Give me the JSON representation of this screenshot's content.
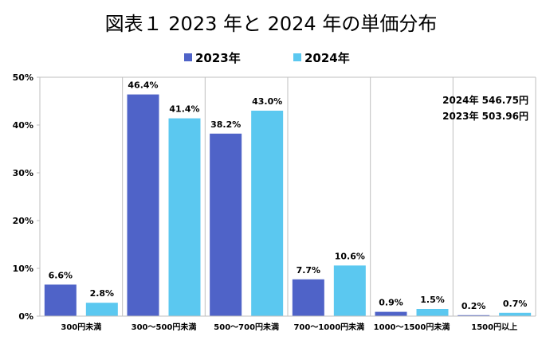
{
  "chart_data": {
    "type": "bar",
    "title": "図表１ 2023 年と 2024 年の単価分布",
    "categories": [
      "300円未満",
      "300～500円未満",
      "500～700円未満",
      "700～1000円未満",
      "1000～1500円未満",
      "1500円以上"
    ],
    "series": [
      {
        "name": "2023年",
        "color": "#4F63C8",
        "values": [
          6.6,
          46.4,
          38.2,
          7.7,
          0.9,
          0.2
        ],
        "labels": [
          "6.6%",
          "46.4%",
          "38.2%",
          "7.7%",
          "0.9%",
          "0.2%"
        ]
      },
      {
        "name": "2024年",
        "color": "#5BC8F0",
        "values": [
          2.8,
          41.4,
          43.0,
          10.6,
          1.5,
          0.7
        ],
        "labels": [
          "2.8%",
          "41.4%",
          "43.0%",
          "10.6%",
          "1.5%",
          "0.7%"
        ]
      }
    ],
    "ylim": [
      0,
      50
    ],
    "yticks": [
      0,
      10,
      20,
      30,
      40,
      50
    ],
    "ytick_labels": [
      "0%",
      "10%",
      "20%",
      "30%",
      "40%",
      "50%"
    ],
    "legend_position": "top",
    "gridlines": "vertical-category-separators",
    "annotations": [
      "2024年 546.75円",
      "2023年 503.96円"
    ]
  }
}
